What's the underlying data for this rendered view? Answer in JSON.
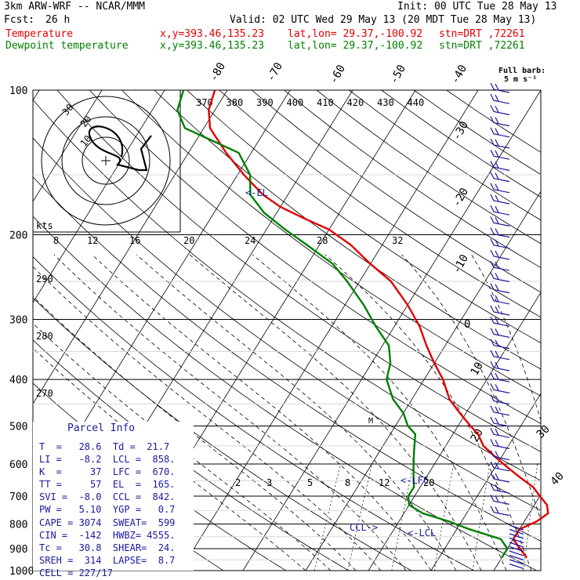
{
  "header": {
    "model": "3km ARW-WRF -- NCAR/MMM",
    "init": "Init: 00 UTC Tue 28 May 13",
    "fcst_label": "Fcst:",
    "fcst_value": "26 h",
    "valid": "Valid: 02 UTC Wed 29 May 13 (20 MDT Tue 28 May 13)",
    "temp_label": "Temperature",
    "dew_label": "Dewpoint temperature",
    "xy": "x,y=393.46,135.23",
    "latlon": "lat,lon= 29.37,-100.92",
    "stn": "stn=DRT ,72261"
  },
  "colors": {
    "temperature": "#e00000",
    "dewpoint": "#008000",
    "text": "#1a1aa0",
    "barb": "#1a1aa0"
  },
  "barb_legend": [
    "Full barb:",
    "5 m s⁻¹"
  ],
  "parcel": {
    "title": "Parcel Info",
    "rows": [
      "T  =   28.6  Td =  21.7",
      "LI =   -8.2  LCL =  858.",
      "K  =     37  LFC =  670.",
      "TT =     57  EL  =  165.",
      "SVI =  -8.0  CCL =  842.",
      "PW =   5.10  YGP =   0.7",
      "CAPE = 3074  SWEAT=  599",
      "CIN =  -142  HWBZ= 4555.",
      "Tc =   30.8  SHEAR=  24.",
      "SREH =  314  LAPSE=  8.7",
      "CELL = 227/17"
    ]
  },
  "labels": {
    "el": "<-EL",
    "lfc": "<-LFC",
    "lcl": "<-LCL",
    "ccl": "CCL->",
    "kts": "kts"
  },
  "chart_data": {
    "type": "skew-t log-p",
    "pressure_ticks": [
      100,
      200,
      300,
      400,
      500,
      600,
      700,
      800,
      900,
      1000
    ],
    "isotherm_labels": [
      -80,
      -70,
      -60,
      -50,
      -40,
      -30,
      -20,
      -10,
      0,
      10,
      20,
      30,
      40
    ],
    "theta_labels": [
      370,
      380,
      390,
      400,
      410,
      420,
      430,
      440
    ],
    "mixing_ratio_labels": [
      2,
      3,
      5,
      8,
      12,
      20
    ],
    "theta_e_labels": [
      290,
      280,
      270
    ],
    "hodograph": {
      "speed_labels": [
        8,
        12,
        16,
        20,
        24,
        28,
        32
      ],
      "ring_labels": [
        10,
        20,
        30
      ]
    },
    "series": [
      {
        "name": "Temperature",
        "color": "#e00000",
        "points": [
          [
            940,
            24
          ],
          [
            900,
            22
          ],
          [
            860,
            20
          ],
          [
            820,
            20
          ],
          [
            790,
            22
          ],
          [
            760,
            23
          ],
          [
            730,
            22
          ],
          [
            700,
            20
          ],
          [
            670,
            18
          ],
          [
            640,
            15
          ],
          [
            610,
            12
          ],
          [
            580,
            9
          ],
          [
            550,
            6
          ],
          [
            520,
            4
          ],
          [
            500,
            2
          ],
          [
            470,
            -1
          ],
          [
            440,
            -4
          ],
          [
            400,
            -7
          ],
          [
            370,
            -10
          ],
          [
            340,
            -13
          ],
          [
            310,
            -16
          ],
          [
            280,
            -20
          ],
          [
            250,
            -25
          ],
          [
            230,
            -30
          ],
          [
            210,
            -35
          ],
          [
            195,
            -40
          ],
          [
            185,
            -45
          ],
          [
            175,
            -50
          ],
          [
            165,
            -54
          ],
          [
            150,
            -59
          ],
          [
            135,
            -64
          ],
          [
            120,
            -69
          ],
          [
            110,
            -71
          ],
          [
            100,
            -72
          ]
        ]
      },
      {
        "name": "Dewpoint temperature",
        "color": "#008000",
        "points": [
          [
            940,
            20
          ],
          [
            900,
            20
          ],
          [
            860,
            18
          ],
          [
            820,
            12
          ],
          [
            790,
            8
          ],
          [
            760,
            3
          ],
          [
            730,
            0
          ],
          [
            700,
            -1
          ],
          [
            670,
            -1
          ],
          [
            640,
            -2
          ],
          [
            610,
            -3
          ],
          [
            580,
            -4
          ],
          [
            550,
            -5
          ],
          [
            520,
            -6
          ],
          [
            500,
            -8
          ],
          [
            470,
            -10
          ],
          [
            440,
            -13
          ],
          [
            400,
            -16
          ],
          [
            370,
            -17
          ],
          [
            340,
            -19
          ],
          [
            310,
            -23
          ],
          [
            280,
            -27
          ],
          [
            250,
            -32
          ],
          [
            230,
            -36
          ],
          [
            210,
            -42
          ],
          [
            195,
            -47
          ],
          [
            180,
            -52
          ],
          [
            165,
            -56
          ],
          [
            150,
            -58
          ],
          [
            135,
            -62
          ],
          [
            120,
            -73
          ],
          [
            110,
            -76
          ],
          [
            100,
            -77
          ]
        ]
      }
    ],
    "wind_profile_description_levels": [
      100,
      200,
      300,
      400,
      500,
      600,
      700,
      800,
      900,
      1000
    ]
  }
}
